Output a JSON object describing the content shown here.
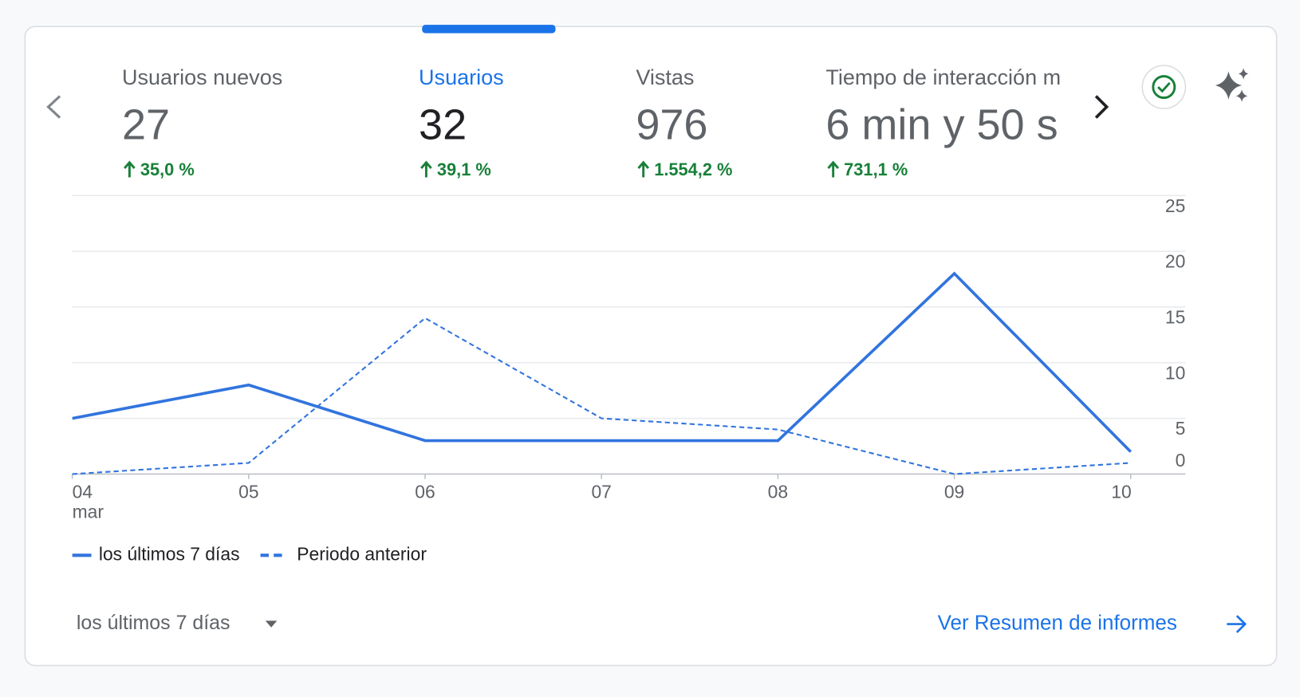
{
  "active_tab": 1,
  "tabs": [
    {
      "label": "Usuarios nuevos",
      "value": 27,
      "change": "35,0 %"
    },
    {
      "label": "Usuarios",
      "value": 32,
      "change": "39,1 %"
    },
    {
      "label": "Vistas",
      "value": 976,
      "change": "1.554,2 %"
    },
    {
      "label": "Tiempo de interacción m",
      "value": "6 min y 50 s",
      "change": "731,1 %"
    }
  ],
  "chart_data": {
    "type": "line",
    "categories": [
      "04",
      "05",
      "06",
      "07",
      "08",
      "09",
      "10"
    ],
    "month_label": "mar",
    "series": [
      {
        "name": "los últimos 7 días",
        "color": "#3174de",
        "style": "solid",
        "values": [
          5,
          8,
          3,
          3,
          3,
          18,
          2
        ]
      },
      {
        "name": "Periodo anterior",
        "color": "#3174de",
        "style": "dashed",
        "values": [
          0,
          1,
          14,
          5,
          4,
          0,
          1
        ]
      }
    ],
    "ylim": [
      0,
      25
    ],
    "yticks": [
      0,
      5,
      10,
      15,
      20,
      25
    ],
    "grid": true
  },
  "footer": {
    "date_range": "los últimos 7 días",
    "link": "Ver Resumen de informes"
  }
}
